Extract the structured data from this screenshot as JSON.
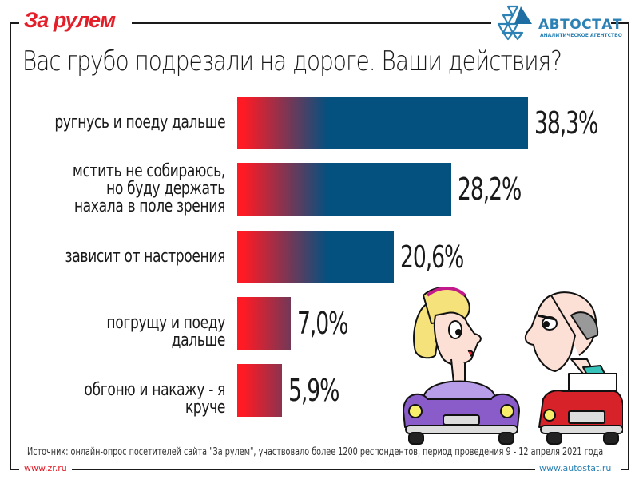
{
  "header": {
    "left_logo": "За рулем",
    "right_logo_name": "АВТОСТАТ",
    "right_logo_sub": "АНАЛИТИЧЕСКОЕ АГЕНТСТВО"
  },
  "colors": {
    "bar_start": "#ff1a24",
    "bar_end": "#04507f",
    "brand_red": "#e3202a",
    "brand_blue": "#2d82b5"
  },
  "chart_data": {
    "type": "bar",
    "orientation": "horizontal",
    "title": "Вас грубо подрезали на дороге. Ваши действия?",
    "categories": [
      "ругнусь и поеду дальше",
      "мстить не собираюсь,\nно буду держать\nнахала в поле зрения",
      "зависит от настроения",
      "погрущу и поеду дальше",
      "обгоню и накажу - я круче"
    ],
    "values": [
      38.3,
      28.2,
      20.6,
      7.0,
      5.9
    ],
    "value_labels": [
      "38,3%",
      "28,2%",
      "20,6%",
      "7,0%",
      "5,9%"
    ],
    "unit": "%",
    "xlim": [
      0,
      38.3
    ],
    "grid": false,
    "legend": "none"
  },
  "footer": {
    "source": "Источник: онлайн-опрос посетителей сайта \"За рулем\", участвовало более 1200 респондентов, период проведения 9 - 12 апреля 2021 года",
    "url_left": "www.zr.ru",
    "url_right": "www.autostat.ru"
  }
}
